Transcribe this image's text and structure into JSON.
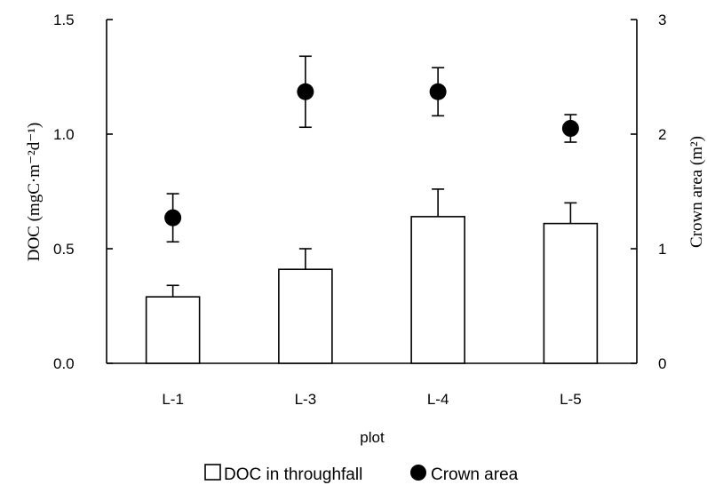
{
  "chart_data": {
    "type": "bar",
    "categories": [
      "L-1",
      "L-3",
      "L-4",
      "L-5"
    ],
    "xlabel": "plot",
    "ylabel_left": "DOC (mgC·m⁻²d⁻¹)",
    "ylabel_right": "Crown area (m²)",
    "ylim_left": [
      0,
      1.5
    ],
    "ylim_right": [
      0,
      3
    ],
    "yticks_left": [
      "0.0",
      "0.5",
      "1.0",
      "1.5"
    ],
    "yticks_right": [
      "0",
      "1",
      "2",
      "3"
    ],
    "grid": false,
    "legend_position": "bottom",
    "series": [
      {
        "name": "DOC in throughfall",
        "type": "bar",
        "axis": "left",
        "values": [
          0.29,
          0.41,
          0.64,
          0.61
        ],
        "error_plus": [
          0.05,
          0.09,
          0.12,
          0.09
        ],
        "marker": "open-square",
        "color": "#ffffff",
        "stroke": "#000000"
      },
      {
        "name": "Crown area",
        "type": "scatter",
        "axis": "right",
        "values": [
          1.27,
          2.37,
          2.37,
          2.05
        ],
        "error": [
          0.21,
          0.31,
          0.21,
          0.12
        ],
        "marker": "filled-circle",
        "color": "#000000"
      }
    ]
  }
}
